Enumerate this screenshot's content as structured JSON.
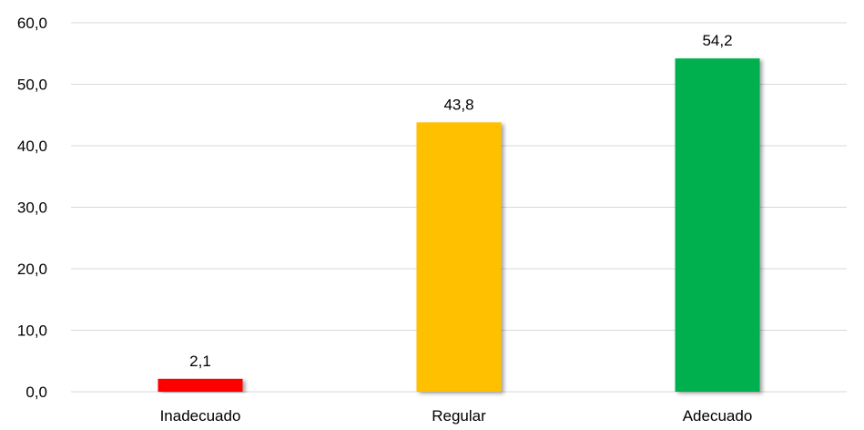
{
  "chart_data": {
    "type": "bar",
    "categories": [
      "Inadecuado",
      "Regular",
      "Adecuado"
    ],
    "values": [
      2.1,
      43.8,
      54.2
    ],
    "value_labels": [
      "2,1",
      "43,8",
      "54,2"
    ],
    "colors": [
      "#ff0000",
      "#ffc000",
      "#00b050"
    ],
    "ylim": [
      0,
      60
    ],
    "yticks": [
      0,
      10,
      20,
      30,
      40,
      50,
      60
    ],
    "ytick_labels": [
      "0,0",
      "10,0",
      "20,0",
      "30,0",
      "40,0",
      "50,0",
      "60,0"
    ],
    "title": "",
    "xlabel": "",
    "ylabel": "",
    "grid": true,
    "legend": "none"
  }
}
